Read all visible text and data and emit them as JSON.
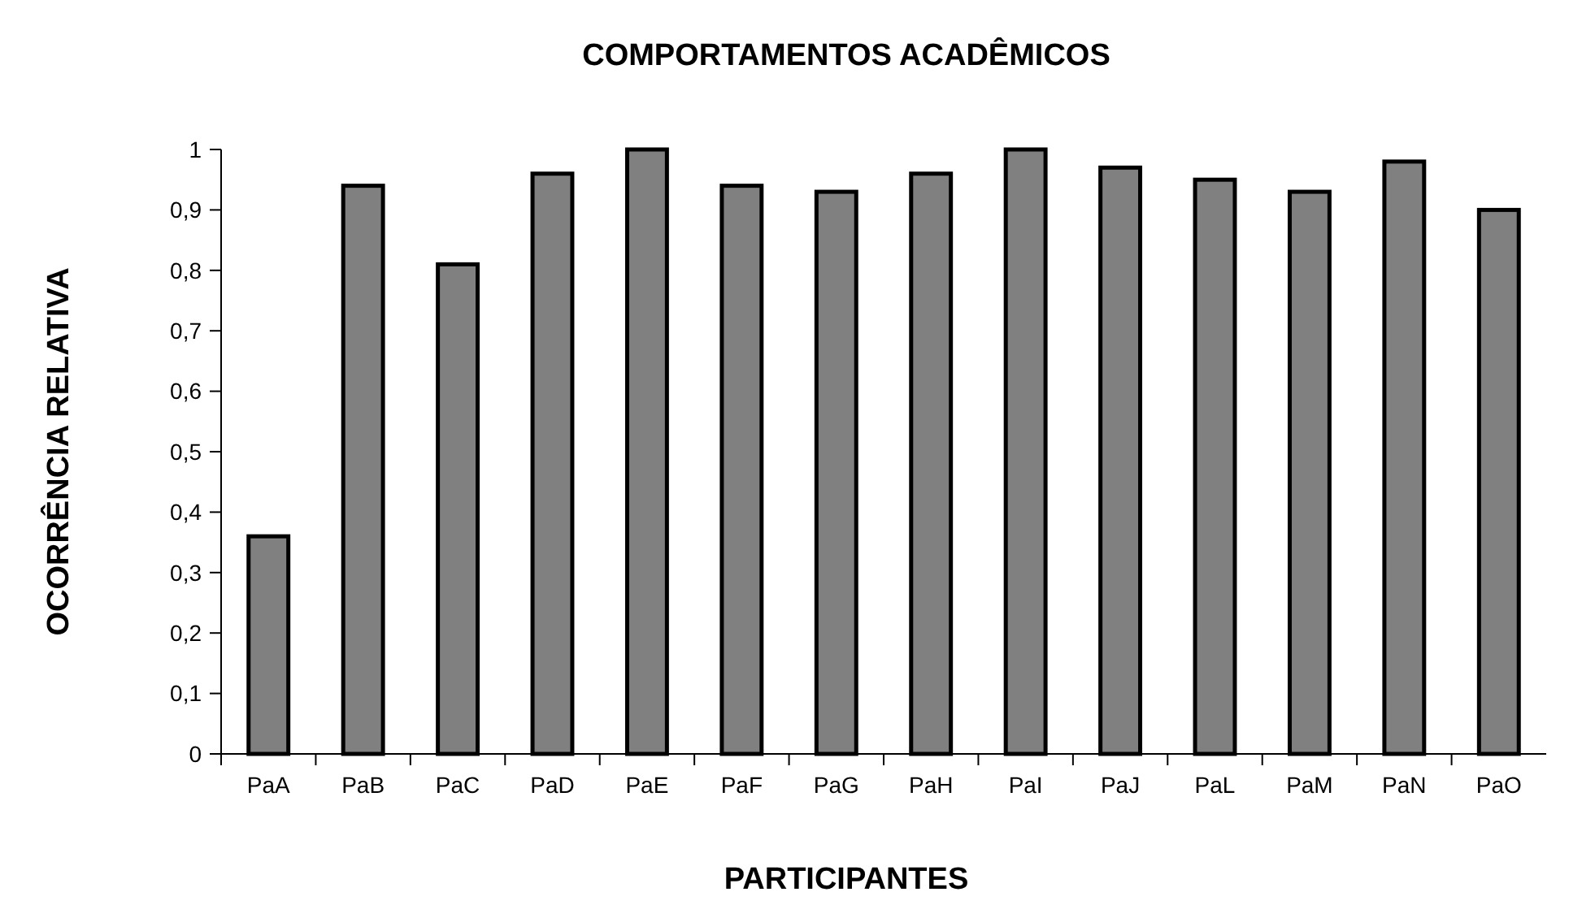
{
  "chart_data": {
    "type": "bar",
    "title": "COMPORTAMENTOS ACADÊMICOS",
    "xlabel": "PARTICIPANTES",
    "ylabel": "OCORRÊNCIA RELATIVA",
    "categories": [
      "PaA",
      "PaB",
      "PaC",
      "PaD",
      "PaE",
      "PaF",
      "PaG",
      "PaH",
      "PaI",
      "PaJ",
      "PaL",
      "PaM",
      "PaN",
      "PaO"
    ],
    "values": [
      0.36,
      0.94,
      0.81,
      0.96,
      1.0,
      0.94,
      0.93,
      0.96,
      1.0,
      0.97,
      0.95,
      0.93,
      0.98,
      0.9
    ],
    "color": "#808080",
    "ylim": [
      0,
      1
    ],
    "yticks": [
      0,
      {
        "value": 0.1,
        "label": "0,1"
      },
      {
        "value": 0.2,
        "label": "0,2"
      },
      {
        "value": 0.3,
        "label": "0,3"
      },
      {
        "value": 0.4,
        "label": "0,4"
      },
      {
        "value": 0.5,
        "label": "0,5"
      },
      {
        "value": 0.6,
        "label": "0,6"
      },
      {
        "value": 0.7,
        "label": "0,7"
      },
      {
        "value": 0.8,
        "label": "0,8"
      },
      {
        "value": 0.9,
        "label": "0,9"
      },
      1
    ],
    "grid": false
  }
}
